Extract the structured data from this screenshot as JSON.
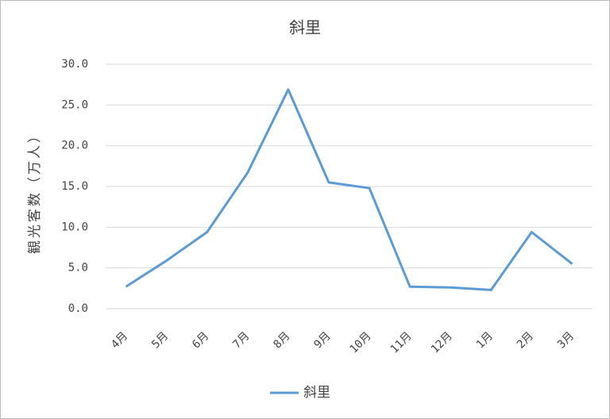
{
  "chart_data": {
    "type": "line",
    "title": "斜里",
    "y_label": "観光客数（万人）",
    "categories": [
      "4月",
      "5月",
      "6月",
      "7月",
      "8月",
      "9月",
      "10月",
      "11月",
      "12月",
      "1月",
      "2月",
      "3月"
    ],
    "series": [
      {
        "name": "斜里",
        "color": "#5b9bd5",
        "values": [
          2.7,
          5.9,
          9.4,
          16.7,
          26.9,
          15.5,
          14.8,
          2.7,
          2.6,
          2.3,
          9.4,
          5.5
        ]
      }
    ],
    "ylim": [
      0,
      30
    ],
    "yticks": [
      {
        "value": 0,
        "label": "0.0"
      },
      {
        "value": 5,
        "label": "5.0"
      },
      {
        "value": 10,
        "label": "10.0"
      },
      {
        "value": 15,
        "label": "15.0"
      },
      {
        "value": 20,
        "label": "20.0"
      },
      {
        "value": 25,
        "label": "25.0"
      },
      {
        "value": 30,
        "label": "30.0"
      }
    ],
    "grid": true,
    "legend": "bottom"
  }
}
